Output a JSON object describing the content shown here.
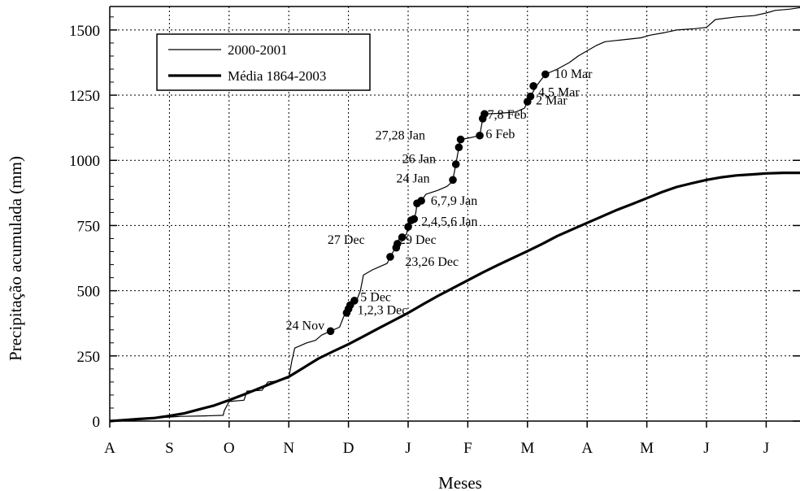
{
  "chart_data": {
    "type": "line",
    "xlabel": "Meses",
    "ylabel": "Precipitação acumulada (mm)",
    "x_tick_labels": [
      "A",
      "S",
      "O",
      "N",
      "D",
      "J",
      "F",
      "M",
      "A",
      "M",
      "J",
      "J"
    ],
    "y_ticks": [
      0,
      250,
      500,
      750,
      1000,
      1250,
      1500
    ],
    "y_tick_labels": [
      "0",
      "250",
      "500",
      "750",
      "1000",
      "1250",
      "1500"
    ],
    "xlim": [
      0,
      11.7
    ],
    "ylim": [
      0,
      1590
    ],
    "grid": true,
    "legend_position": "top-left",
    "series": [
      {
        "name": "2000-2001",
        "line_width": "thin",
        "color": "#000000",
        "points": [
          [
            0,
            0
          ],
          [
            0.3,
            2
          ],
          [
            0.6,
            8
          ],
          [
            0.9,
            14
          ],
          [
            1.2,
            18
          ],
          [
            1.6,
            20
          ],
          [
            1.9,
            22
          ],
          [
            1.92,
            40
          ],
          [
            2.0,
            75
          ],
          [
            2.25,
            80
          ],
          [
            2.3,
            115
          ],
          [
            2.55,
            118
          ],
          [
            2.65,
            150
          ],
          [
            2.75,
            152
          ],
          [
            3.0,
            165
          ],
          [
            3.05,
            230
          ],
          [
            3.1,
            280
          ],
          [
            3.3,
            300
          ],
          [
            3.45,
            310
          ],
          [
            3.55,
            330
          ],
          [
            3.7,
            345
          ],
          [
            3.85,
            360
          ],
          [
            3.92,
            400
          ],
          [
            3.97,
            420
          ],
          [
            4.05,
            450
          ],
          [
            4.1,
            462
          ],
          [
            4.15,
            470
          ],
          [
            4.2,
            500
          ],
          [
            4.25,
            560
          ],
          [
            4.4,
            580
          ],
          [
            4.5,
            590
          ],
          [
            4.65,
            605
          ],
          [
            4.7,
            630
          ],
          [
            4.75,
            650
          ],
          [
            4.8,
            670
          ],
          [
            4.85,
            700
          ],
          [
            4.9,
            710
          ],
          [
            4.97,
            715
          ],
          [
            5.0,
            745
          ],
          [
            5.05,
            770
          ],
          [
            5.1,
            775
          ],
          [
            5.13,
            800
          ],
          [
            5.15,
            835
          ],
          [
            5.22,
            845
          ],
          [
            5.3,
            870
          ],
          [
            5.5,
            885
          ],
          [
            5.65,
            900
          ],
          [
            5.7,
            910
          ],
          [
            5.75,
            925
          ],
          [
            5.8,
            985
          ],
          [
            5.85,
            1050
          ],
          [
            5.88,
            1080
          ],
          [
            6.0,
            1085
          ],
          [
            6.1,
            1090
          ],
          [
            6.2,
            1095
          ],
          [
            6.22,
            1120
          ],
          [
            6.25,
            1160
          ],
          [
            6.28,
            1178
          ],
          [
            6.5,
            1180
          ],
          [
            6.8,
            1185
          ],
          [
            6.95,
            1200
          ],
          [
            7.0,
            1225
          ],
          [
            7.05,
            1245
          ],
          [
            7.1,
            1265
          ],
          [
            7.15,
            1285
          ],
          [
            7.3,
            1330
          ],
          [
            7.5,
            1350
          ],
          [
            7.7,
            1375
          ],
          [
            7.85,
            1400
          ],
          [
            8.0,
            1420
          ],
          [
            8.15,
            1440
          ],
          [
            8.3,
            1455
          ],
          [
            8.5,
            1460
          ],
          [
            8.7,
            1465
          ],
          [
            8.9,
            1470
          ],
          [
            9.05,
            1480
          ],
          [
            9.3,
            1490
          ],
          [
            9.5,
            1500
          ],
          [
            9.8,
            1505
          ],
          [
            10.0,
            1510
          ],
          [
            10.15,
            1540
          ],
          [
            10.5,
            1550
          ],
          [
            10.8,
            1555
          ],
          [
            11.0,
            1565
          ],
          [
            11.15,
            1575
          ],
          [
            11.4,
            1580
          ],
          [
            11.7,
            1590
          ]
        ]
      },
      {
        "name": "Média 1864-2003",
        "line_width": "thick",
        "color": "#000000",
        "points": [
          [
            0,
            0
          ],
          [
            0.25,
            4
          ],
          [
            0.5,
            8
          ],
          [
            0.75,
            12
          ],
          [
            1.0,
            20
          ],
          [
            1.25,
            30
          ],
          [
            1.5,
            45
          ],
          [
            1.75,
            60
          ],
          [
            2.0,
            80
          ],
          [
            2.25,
            102
          ],
          [
            2.5,
            125
          ],
          [
            2.75,
            148
          ],
          [
            3.0,
            170
          ],
          [
            3.25,
            205
          ],
          [
            3.5,
            240
          ],
          [
            3.75,
            268
          ],
          [
            4.0,
            295
          ],
          [
            4.25,
            325
          ],
          [
            4.5,
            355
          ],
          [
            4.75,
            385
          ],
          [
            5.0,
            415
          ],
          [
            5.25,
            448
          ],
          [
            5.5,
            480
          ],
          [
            5.75,
            510
          ],
          [
            6.0,
            540
          ],
          [
            6.25,
            570
          ],
          [
            6.5,
            598
          ],
          [
            6.75,
            625
          ],
          [
            7.0,
            652
          ],
          [
            7.25,
            680
          ],
          [
            7.5,
            710
          ],
          [
            7.75,
            735
          ],
          [
            8.0,
            760
          ],
          [
            8.25,
            785
          ],
          [
            8.5,
            810
          ],
          [
            8.75,
            832
          ],
          [
            9.0,
            855
          ],
          [
            9.25,
            878
          ],
          [
            9.5,
            898
          ],
          [
            9.75,
            912
          ],
          [
            10.0,
            925
          ],
          [
            10.25,
            935
          ],
          [
            10.5,
            942
          ],
          [
            10.75,
            946
          ],
          [
            11.0,
            950
          ],
          [
            11.3,
            952
          ],
          [
            11.7,
            952
          ]
        ]
      }
    ],
    "markers": [
      {
        "x": 3.7,
        "y": 345
      },
      {
        "x": 3.97,
        "y": 415
      },
      {
        "x": 4.0,
        "y": 430
      },
      {
        "x": 4.03,
        "y": 445
      },
      {
        "x": 4.1,
        "y": 462
      },
      {
        "x": 4.7,
        "y": 630
      },
      {
        "x": 4.8,
        "y": 665
      },
      {
        "x": 4.82,
        "y": 680
      },
      {
        "x": 4.9,
        "y": 705
      },
      {
        "x": 5.0,
        "y": 745
      },
      {
        "x": 5.05,
        "y": 770
      },
      {
        "x": 5.1,
        "y": 775
      },
      {
        "x": 5.15,
        "y": 835
      },
      {
        "x": 5.22,
        "y": 845
      },
      {
        "x": 5.75,
        "y": 925
      },
      {
        "x": 5.8,
        "y": 985
      },
      {
        "x": 5.85,
        "y": 1050
      },
      {
        "x": 5.88,
        "y": 1080
      },
      {
        "x": 6.2,
        "y": 1095
      },
      {
        "x": 6.25,
        "y": 1160
      },
      {
        "x": 6.28,
        "y": 1178
      },
      {
        "x": 7.0,
        "y": 1225
      },
      {
        "x": 7.05,
        "y": 1245
      },
      {
        "x": 7.1,
        "y": 1285
      },
      {
        "x": 7.3,
        "y": 1330
      }
    ],
    "annotations": [
      {
        "text": "24 Nov",
        "x": 2.95,
        "y": 350
      },
      {
        "text": "5 Dec",
        "x": 4.2,
        "y": 460
      },
      {
        "text": "1,2,3 Dec",
        "x": 4.15,
        "y": 410
      },
      {
        "text": "27 Dec",
        "x": 3.65,
        "y": 680
      },
      {
        "text": "29 Dec",
        "x": 4.85,
        "y": 680
      },
      {
        "text": "23,26 Dec",
        "x": 4.95,
        "y": 595
      },
      {
        "text": "2,4,5,6 Jan",
        "x": 5.22,
        "y": 750
      },
      {
        "text": "6,7,9 Jan",
        "x": 5.38,
        "y": 830
      },
      {
        "text": "24 Jan",
        "x": 4.8,
        "y": 915
      },
      {
        "text": "26 Jan",
        "x": 4.9,
        "y": 990
      },
      {
        "text": "27,28 Jan",
        "x": 4.45,
        "y": 1080
      },
      {
        "text": "6 Feb",
        "x": 6.3,
        "y": 1085
      },
      {
        "text": "7,8 Feb",
        "x": 6.33,
        "y": 1160
      },
      {
        "text": "2 Mar",
        "x": 7.14,
        "y": 1215
      },
      {
        "text": "4,5 Mar",
        "x": 7.18,
        "y": 1245
      },
      {
        "text": "10 Mar",
        "x": 7.45,
        "y": 1315
      }
    ]
  }
}
